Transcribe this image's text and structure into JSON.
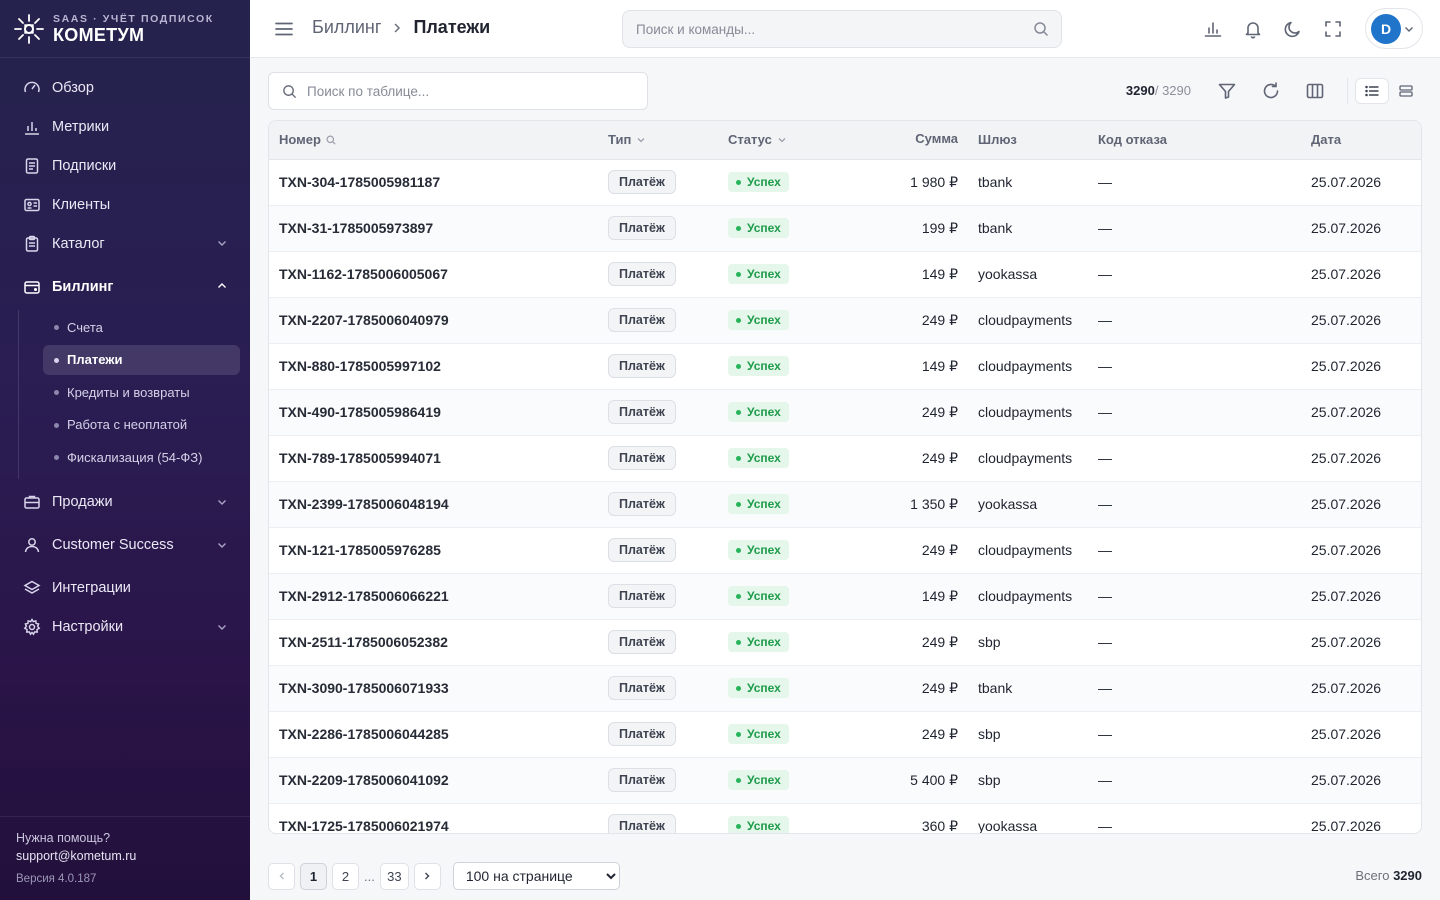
{
  "brand": {
    "subtitle": "SAAS · УЧЁТ ПОДПИСОК",
    "name": "КОМЕТУМ"
  },
  "sidebar": {
    "items": [
      {
        "label": "Обзор",
        "icon": "gauge-icon"
      },
      {
        "label": "Метрики",
        "icon": "bar-chart-icon"
      },
      {
        "label": "Подписки",
        "icon": "document-icon"
      },
      {
        "label": "Клиенты",
        "icon": "id-card-icon"
      },
      {
        "label": "Каталог",
        "icon": "clipboard-icon"
      },
      {
        "label": "Биллинг",
        "icon": "wallet-icon"
      },
      {
        "label": "Продажи",
        "icon": "briefcase-icon"
      },
      {
        "label": "Customer Success",
        "icon": "user-icon"
      },
      {
        "label": "Интеграции",
        "icon": "layers-icon"
      },
      {
        "label": "Настройки",
        "icon": "gear-icon"
      }
    ],
    "billing_sub": [
      "Счета",
      "Платежи",
      "Кредиты и возвраты",
      "Работа с неоплатой",
      "Фискализация (54-ФЗ)"
    ],
    "help": {
      "title": "Нужна помощь?",
      "email": "support@kometum.ru",
      "version": "Версия 4.0.187"
    }
  },
  "header": {
    "breadcrumb_parent": "Биллинг",
    "breadcrumb_current": "Платежи",
    "search_placeholder": "Поиск и команды...",
    "avatar_initial": "D"
  },
  "toolbar": {
    "search_placeholder": "Поиск по таблице...",
    "count_shown": "3290",
    "count_total": "/ 3290"
  },
  "table": {
    "columns": {
      "number": "Номер",
      "type": "Тип",
      "status": "Статус",
      "sum": "Сумма",
      "gateway": "Шлюз",
      "code": "Код отказа",
      "date": "Дата"
    },
    "rows": [
      {
        "number": "TXN-304-1785005981187",
        "type": "Платёж",
        "status": "Успех",
        "sum": "1 980 ₽",
        "gateway": "tbank",
        "code": "—",
        "date": "25.07.2026"
      },
      {
        "number": "TXN-31-1785005973897",
        "type": "Платёж",
        "status": "Успех",
        "sum": "199 ₽",
        "gateway": "tbank",
        "code": "—",
        "date": "25.07.2026"
      },
      {
        "number": "TXN-1162-1785006005067",
        "type": "Платёж",
        "status": "Успех",
        "sum": "149 ₽",
        "gateway": "yookassa",
        "code": "—",
        "date": "25.07.2026"
      },
      {
        "number": "TXN-2207-1785006040979",
        "type": "Платёж",
        "status": "Успех",
        "sum": "249 ₽",
        "gateway": "cloudpayments",
        "code": "—",
        "date": "25.07.2026"
      },
      {
        "number": "TXN-880-1785005997102",
        "type": "Платёж",
        "status": "Успех",
        "sum": "149 ₽",
        "gateway": "cloudpayments",
        "code": "—",
        "date": "25.07.2026"
      },
      {
        "number": "TXN-490-1785005986419",
        "type": "Платёж",
        "status": "Успех",
        "sum": "249 ₽",
        "gateway": "cloudpayments",
        "code": "—",
        "date": "25.07.2026"
      },
      {
        "number": "TXN-789-1785005994071",
        "type": "Платёж",
        "status": "Успех",
        "sum": "249 ₽",
        "gateway": "cloudpayments",
        "code": "—",
        "date": "25.07.2026"
      },
      {
        "number": "TXN-2399-1785006048194",
        "type": "Платёж",
        "status": "Успех",
        "sum": "1 350 ₽",
        "gateway": "yookassa",
        "code": "—",
        "date": "25.07.2026"
      },
      {
        "number": "TXN-121-1785005976285",
        "type": "Платёж",
        "status": "Успех",
        "sum": "249 ₽",
        "gateway": "cloudpayments",
        "code": "—",
        "date": "25.07.2026"
      },
      {
        "number": "TXN-2912-1785006066221",
        "type": "Платёж",
        "status": "Успех",
        "sum": "149 ₽",
        "gateway": "cloudpayments",
        "code": "—",
        "date": "25.07.2026"
      },
      {
        "number": "TXN-2511-1785006052382",
        "type": "Платёж",
        "status": "Успех",
        "sum": "249 ₽",
        "gateway": "sbp",
        "code": "—",
        "date": "25.07.2026"
      },
      {
        "number": "TXN-3090-1785006071933",
        "type": "Платёж",
        "status": "Успех",
        "sum": "249 ₽",
        "gateway": "tbank",
        "code": "—",
        "date": "25.07.2026"
      },
      {
        "number": "TXN-2286-1785006044285",
        "type": "Платёж",
        "status": "Успех",
        "sum": "249 ₽",
        "gateway": "sbp",
        "code": "—",
        "date": "25.07.2026"
      },
      {
        "number": "TXN-2209-1785006041092",
        "type": "Платёж",
        "status": "Успех",
        "sum": "5 400 ₽",
        "gateway": "sbp",
        "code": "—",
        "date": "25.07.2026"
      },
      {
        "number": "TXN-1725-1785006021974",
        "type": "Платёж",
        "status": "Успех",
        "sum": "360 ₽",
        "gateway": "yookassa",
        "code": "—",
        "date": "25.07.2026"
      }
    ]
  },
  "pagination": {
    "pages": [
      "1",
      "2"
    ],
    "dots": "...",
    "last": "33",
    "per_page": "100 на странице",
    "total_label": "Всего",
    "total_value": "3290"
  },
  "colors": {
    "accent": "#2074c9",
    "success_bg": "#e5f6ea",
    "success_text": "#1e9c4a"
  }
}
